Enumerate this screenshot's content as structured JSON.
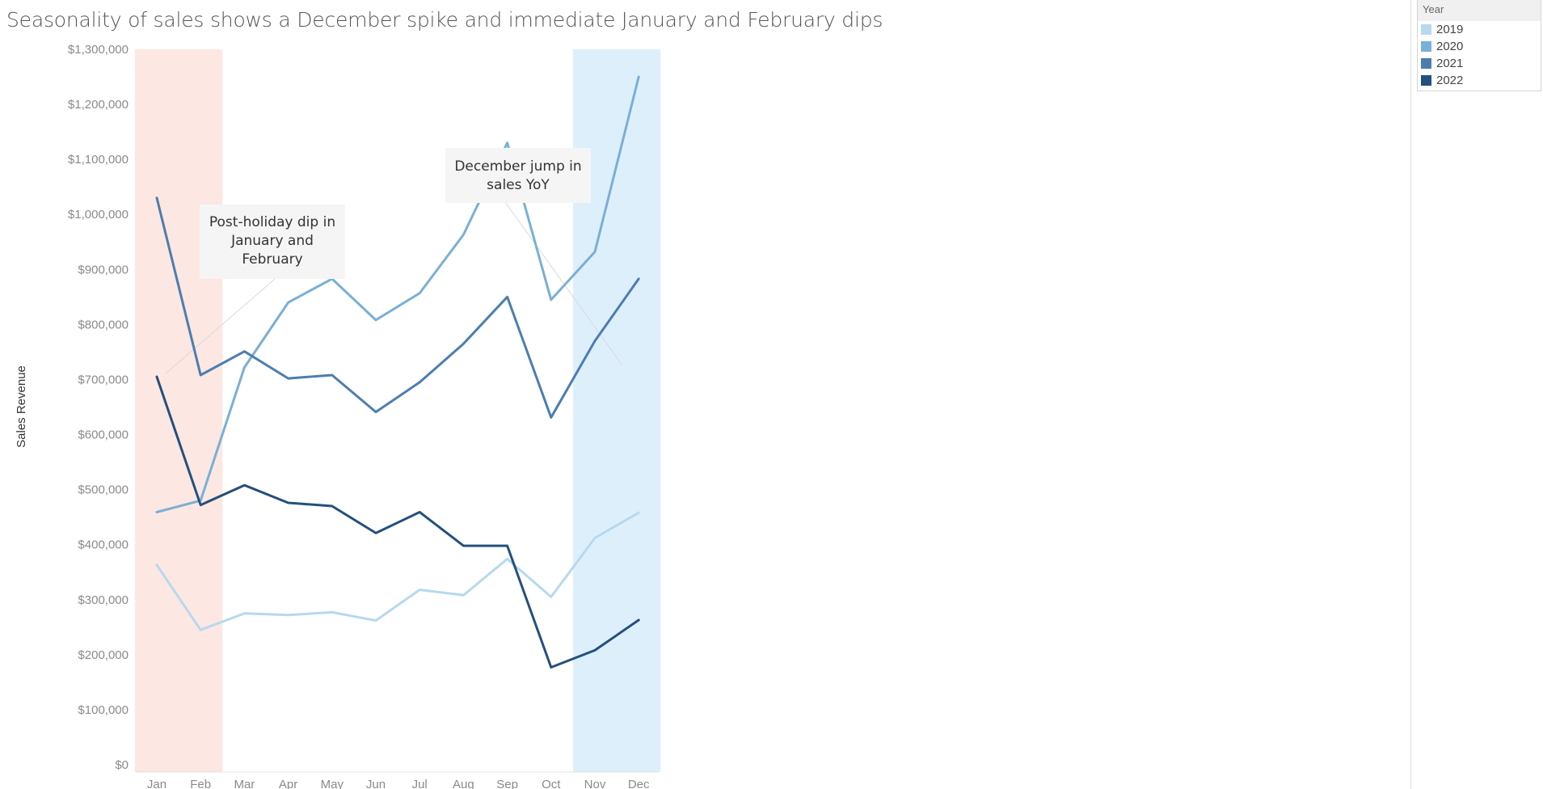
{
  "chart_data": {
    "type": "line",
    "title": "Seasonality of sales shows a December spike and immediate January and February dips",
    "ylabel": "Sales Revenue",
    "xlabel": "",
    "categories": [
      "Jan",
      "Feb",
      "Mar",
      "Apr",
      "May",
      "Jun",
      "Jul",
      "Aug",
      "Sep",
      "Oct",
      "Nov",
      "Dec"
    ],
    "ylim": [
      0,
      1300000
    ],
    "yticks": [
      0,
      100000,
      200000,
      300000,
      400000,
      500000,
      600000,
      700000,
      800000,
      900000,
      1000000,
      1100000,
      1200000,
      1300000
    ],
    "ytick_labels": [
      "$0",
      "$100,000",
      "$200,000",
      "$300,000",
      "$400,000",
      "$500,000",
      "$600,000",
      "$700,000",
      "$800,000",
      "$900,000",
      "$1,000,000",
      "$1,100,000",
      "$1,200,000",
      "$1,300,000"
    ],
    "series": [
      {
        "name": "2019",
        "color": "#b6d9ee",
        "values": [
          363000,
          245000,
          275000,
          272000,
          277000,
          262000,
          318000,
          308000,
          374000,
          305000,
          412000,
          458000
        ]
      },
      {
        "name": "2020",
        "color": "#7aafd6",
        "values": [
          459000,
          480000,
          722000,
          840000,
          883000,
          808000,
          857000,
          963000,
          1130000,
          845000,
          932000,
          1250000
        ]
      },
      {
        "name": "2021",
        "color": "#4b7eaf",
        "values": [
          1030000,
          708000,
          751000,
          702000,
          708000,
          641000,
          695000,
          765000,
          850000,
          631000,
          770000,
          883000
        ]
      },
      {
        "name": "2022",
        "color": "#23507e",
        "values": [
          705000,
          472000,
          508000,
          476000,
          470000,
          421000,
          459000,
          398000,
          398000,
          177000,
          208000,
          263000
        ]
      }
    ],
    "highlight_bands": [
      {
        "from": "Jan",
        "to": "Feb",
        "color": "#fde7e2"
      },
      {
        "from": "Nov",
        "to": "Dec",
        "color": "#deeffc"
      }
    ],
    "annotations": [
      {
        "text": [
          "Post-holiday dip in",
          "January and",
          "February"
        ]
      },
      {
        "text": [
          "December jump in",
          "sales YoY"
        ]
      }
    ],
    "grid": false,
    "legend": {
      "title": "Year",
      "placement": "top-right"
    }
  }
}
